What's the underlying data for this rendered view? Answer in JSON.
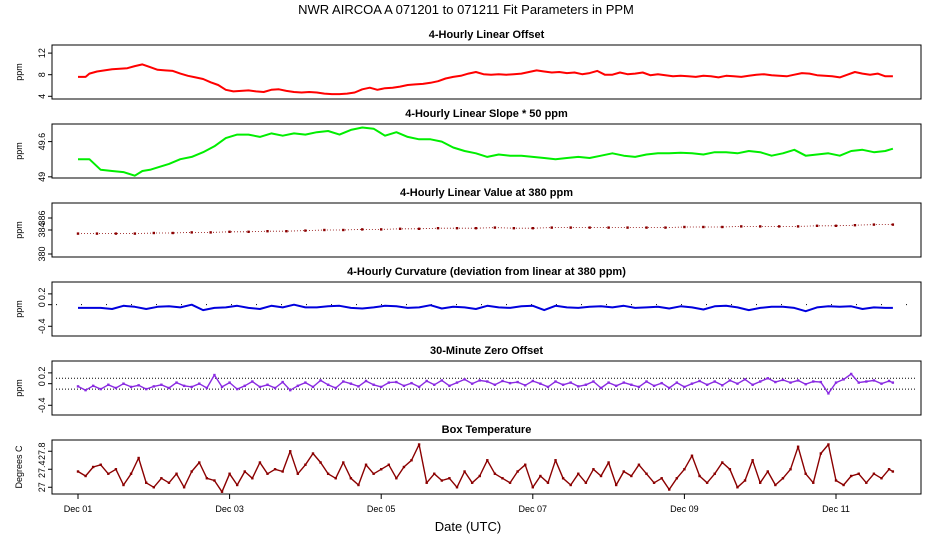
{
  "figure": {
    "title": "NWR   AIRCOA A   071201 to 071211   Fit Parameters in PPM",
    "xlabel": "Date (UTC)",
    "x_ticks": [
      "Dec 01",
      "Dec 03",
      "Dec 05",
      "Dec 07",
      "Dec 09",
      "Dec 11"
    ]
  },
  "chart_data": [
    {
      "type": "line",
      "title": "4-Hourly Linear Offset",
      "ylabel": "ppm",
      "ylim": [
        3.5,
        13.5
      ],
      "yticks": [
        4,
        8,
        12
      ],
      "color": "#ff0000",
      "marker": "line",
      "x": [
        0.0,
        0.1,
        0.15,
        0.25,
        0.35,
        0.45,
        0.55,
        0.65,
        0.75,
        0.85,
        0.95,
        1.05,
        1.15,
        1.25,
        1.35,
        1.45,
        1.55,
        1.65,
        1.75,
        1.85,
        1.95,
        2.05,
        2.15,
        2.25,
        2.35,
        2.45,
        2.55,
        2.65,
        2.75,
        2.85,
        2.95,
        3.05,
        3.15,
        3.25,
        3.35,
        3.45,
        3.55,
        3.65,
        3.75,
        3.85,
        3.95,
        4.05,
        4.15,
        4.25,
        4.35,
        4.45,
        4.55,
        4.65,
        4.75,
        4.85,
        4.95,
        5.05,
        5.15,
        5.25,
        5.35,
        5.45,
        5.55,
        5.65,
        5.75,
        5.85,
        5.95,
        6.05,
        6.15,
        6.25,
        6.35,
        6.45,
        6.55,
        6.65,
        6.75,
        6.85,
        6.95,
        7.05,
        7.15,
        7.25,
        7.35,
        7.45,
        7.55,
        7.65,
        7.75,
        7.85,
        7.95,
        8.05,
        8.15,
        8.25,
        8.35,
        8.45,
        8.55,
        8.65,
        8.75,
        8.85,
        8.95,
        9.05,
        9.15,
        9.25,
        9.35,
        9.45,
        9.55,
        9.65,
        9.75,
        9.85,
        9.95,
        10.05,
        10.15,
        10.25,
        10.35,
        10.45,
        10.55,
        10.65,
        10.75
      ],
      "y": [
        7.6,
        7.6,
        8.2,
        8.6,
        8.8,
        9.0,
        9.1,
        9.2,
        9.6,
        9.9,
        9.4,
        8.9,
        8.8,
        8.7,
        8.2,
        7.8,
        7.5,
        7.2,
        6.6,
        6.1,
        5.2,
        4.9,
        5.0,
        5.1,
        4.9,
        4.8,
        5.2,
        5.3,
        5.0,
        4.8,
        4.7,
        4.8,
        4.7,
        4.5,
        4.4,
        4.4,
        4.5,
        4.7,
        5.3,
        5.6,
        5.2,
        5.5,
        5.6,
        5.8,
        6.1,
        6.2,
        6.3,
        6.5,
        6.8,
        7.3,
        7.6,
        7.8,
        8.2,
        8.5,
        8.1,
        8.0,
        8.1,
        8.0,
        8.1,
        8.2,
        8.5,
        8.8,
        8.6,
        8.4,
        8.5,
        8.3,
        8.4,
        8.1,
        8.3,
        8.7,
        8.0,
        8.0,
        8.4,
        8.1,
        8.2,
        8.4,
        7.9,
        8.1,
        7.9,
        7.7,
        7.8,
        7.7,
        7.6,
        7.8,
        7.7,
        7.5,
        7.8,
        7.7,
        7.6,
        7.8,
        8.0,
        8.1,
        7.9,
        7.8,
        7.7,
        8.0,
        8.3,
        8.2,
        7.9,
        7.8,
        7.7,
        7.5,
        8.0,
        8.5,
        8.2,
        8.0,
        8.2,
        7.7,
        7.7
      ]
    },
    {
      "type": "line",
      "title": "4-Hourly Linear Slope * 50 ppm",
      "ylabel": "ppm",
      "ylim": [
        48.98,
        49.9
      ],
      "yticks": [
        49.0,
        49.6
      ],
      "color": "#00ee00",
      "marker": "line",
      "x": [
        0.0,
        0.15,
        0.3,
        0.45,
        0.6,
        0.75,
        0.85,
        0.95,
        1.05,
        1.2,
        1.35,
        1.5,
        1.65,
        1.8,
        1.95,
        2.1,
        2.25,
        2.4,
        2.55,
        2.7,
        2.85,
        3.0,
        3.15,
        3.3,
        3.45,
        3.6,
        3.75,
        3.9,
        4.05,
        4.2,
        4.35,
        4.5,
        4.65,
        4.8,
        4.95,
        5.1,
        5.25,
        5.4,
        5.55,
        5.7,
        5.85,
        6.0,
        6.15,
        6.3,
        6.45,
        6.6,
        6.75,
        6.9,
        7.05,
        7.2,
        7.35,
        7.5,
        7.65,
        7.8,
        7.95,
        8.1,
        8.25,
        8.4,
        8.55,
        8.7,
        8.85,
        9.0,
        9.15,
        9.3,
        9.45,
        9.6,
        9.75,
        9.9,
        10.05,
        10.2,
        10.35,
        10.5,
        10.65,
        10.75
      ],
      "y": [
        49.3,
        49.3,
        49.12,
        49.1,
        49.08,
        49.02,
        49.1,
        49.12,
        49.16,
        49.22,
        49.3,
        49.34,
        49.42,
        49.52,
        49.66,
        49.72,
        49.72,
        49.68,
        49.74,
        49.7,
        49.74,
        49.72,
        49.76,
        49.78,
        49.72,
        49.8,
        49.84,
        49.82,
        49.7,
        49.76,
        49.68,
        49.64,
        49.64,
        49.6,
        49.5,
        49.44,
        49.4,
        49.34,
        49.38,
        49.36,
        49.36,
        49.34,
        49.32,
        49.3,
        49.32,
        49.34,
        49.32,
        49.36,
        49.4,
        49.36,
        49.34,
        49.38,
        49.4,
        49.4,
        49.41,
        49.4,
        49.38,
        49.42,
        49.42,
        49.4,
        49.44,
        49.42,
        49.36,
        49.4,
        49.46,
        49.36,
        49.38,
        49.4,
        49.36,
        49.44,
        49.46,
        49.42,
        49.44,
        49.48
      ]
    },
    {
      "type": "scatter",
      "title": "4-Hourly Linear Value at 380 ppm",
      "ylabel": "ppm",
      "ylim": [
        379.5,
        388.5
      ],
      "yticks": [
        380,
        384,
        386
      ],
      "color": "#8b0000",
      "marker": "dots",
      "x": [
        0.0,
        0.25,
        0.5,
        0.75,
        1.0,
        1.25,
        1.5,
        1.75,
        2.0,
        2.25,
        2.5,
        2.75,
        3.0,
        3.25,
        3.5,
        3.75,
        4.0,
        4.25,
        4.5,
        4.75,
        5.0,
        5.25,
        5.5,
        5.75,
        6.0,
        6.25,
        6.5,
        6.75,
        7.0,
        7.25,
        7.5,
        7.75,
        8.0,
        8.25,
        8.5,
        8.75,
        9.0,
        9.25,
        9.5,
        9.75,
        10.0,
        10.25,
        10.5,
        10.75
      ],
      "y": [
        383.4,
        383.4,
        383.4,
        383.4,
        383.5,
        383.5,
        383.6,
        383.6,
        383.7,
        383.7,
        383.8,
        383.8,
        383.9,
        384.0,
        384.0,
        384.1,
        384.1,
        384.2,
        384.2,
        384.3,
        384.3,
        384.3,
        384.4,
        384.3,
        384.3,
        384.4,
        384.4,
        384.4,
        384.4,
        384.4,
        384.4,
        384.4,
        384.5,
        384.5,
        384.5,
        384.6,
        384.6,
        384.6,
        384.6,
        384.7,
        384.7,
        384.8,
        384.9,
        384.9
      ]
    },
    {
      "type": "line",
      "title": "4-Hourly Curvature (deviation from linear at 380 ppm)",
      "ylabel": "ppm",
      "ylim": [
        -0.58,
        0.42
      ],
      "yticks": [
        -0.4,
        0.0,
        0.2
      ],
      "color": "#0000dd",
      "marker": "line",
      "reference_lines": [
        0.0
      ],
      "x": [
        0.0,
        0.15,
        0.3,
        0.45,
        0.6,
        0.75,
        0.9,
        1.05,
        1.2,
        1.35,
        1.5,
        1.65,
        1.8,
        1.95,
        2.1,
        2.25,
        2.4,
        2.55,
        2.7,
        2.85,
        3.0,
        3.15,
        3.3,
        3.45,
        3.6,
        3.75,
        3.9,
        4.05,
        4.2,
        4.35,
        4.5,
        4.65,
        4.8,
        4.95,
        5.1,
        5.25,
        5.4,
        5.55,
        5.7,
        5.85,
        6.0,
        6.15,
        6.3,
        6.45,
        6.6,
        6.75,
        6.9,
        7.05,
        7.2,
        7.35,
        7.5,
        7.65,
        7.8,
        7.95,
        8.1,
        8.25,
        8.4,
        8.55,
        8.7,
        8.85,
        9.0,
        9.15,
        9.3,
        9.45,
        9.6,
        9.75,
        9.9,
        10.05,
        10.2,
        10.35,
        10.5,
        10.65,
        10.75
      ],
      "y": [
        -0.06,
        -0.06,
        -0.06,
        -0.08,
        -0.02,
        -0.04,
        -0.08,
        -0.04,
        -0.03,
        -0.05,
        0.0,
        -0.1,
        -0.06,
        -0.05,
        -0.02,
        -0.06,
        -0.08,
        -0.02,
        -0.05,
        0.0,
        -0.05,
        -0.05,
        -0.03,
        -0.02,
        -0.06,
        -0.07,
        -0.05,
        -0.02,
        -0.03,
        -0.06,
        -0.05,
        -0.01,
        -0.07,
        -0.04,
        -0.05,
        -0.08,
        -0.02,
        -0.05,
        -0.06,
        -0.03,
        -0.02,
        -0.1,
        -0.02,
        -0.05,
        -0.06,
        -0.04,
        -0.03,
        -0.05,
        -0.02,
        -0.06,
        -0.05,
        -0.04,
        -0.07,
        -0.03,
        -0.05,
        -0.09,
        -0.03,
        -0.02,
        -0.05,
        -0.1,
        -0.06,
        -0.04,
        -0.04,
        -0.06,
        -0.12,
        -0.05,
        -0.03,
        -0.04,
        -0.03,
        -0.08,
        -0.05,
        -0.06,
        -0.06
      ]
    },
    {
      "type": "line",
      "title": "30-Minute Zero Offset",
      "ylabel": "ppm",
      "ylim": [
        -0.58,
        0.42
      ],
      "yticks": [
        -0.4,
        0.0,
        0.2
      ],
      "color": "#8a2be2",
      "marker": "line+points",
      "reference_lines": [
        0.1,
        -0.1
      ],
      "x": [
        0.0,
        0.1,
        0.2,
        0.3,
        0.4,
        0.5,
        0.6,
        0.7,
        0.8,
        0.9,
        1.0,
        1.1,
        1.2,
        1.3,
        1.4,
        1.5,
        1.6,
        1.7,
        1.8,
        1.9,
        2.0,
        2.1,
        2.2,
        2.3,
        2.4,
        2.5,
        2.6,
        2.7,
        2.8,
        2.9,
        3.0,
        3.1,
        3.2,
        3.3,
        3.4,
        3.5,
        3.6,
        3.7,
        3.8,
        3.9,
        4.0,
        4.1,
        4.2,
        4.3,
        4.4,
        4.5,
        4.6,
        4.7,
        4.8,
        4.9,
        5.0,
        5.1,
        5.2,
        5.3,
        5.4,
        5.5,
        5.6,
        5.7,
        5.8,
        5.9,
        6.0,
        6.1,
        6.2,
        6.3,
        6.4,
        6.5,
        6.6,
        6.7,
        6.8,
        6.9,
        7.0,
        7.1,
        7.2,
        7.3,
        7.4,
        7.5,
        7.6,
        7.7,
        7.8,
        7.9,
        8.0,
        8.1,
        8.2,
        8.3,
        8.4,
        8.5,
        8.6,
        8.7,
        8.8,
        8.9,
        9.0,
        9.1,
        9.2,
        9.3,
        9.4,
        9.5,
        9.6,
        9.7,
        9.8,
        9.9,
        10.0,
        10.1,
        10.2,
        10.3,
        10.4,
        10.5,
        10.6,
        10.7,
        10.75
      ],
      "y": [
        -0.05,
        -0.12,
        -0.04,
        -0.1,
        -0.02,
        -0.08,
        0.0,
        -0.06,
        -0.03,
        -0.1,
        -0.05,
        -0.02,
        -0.08,
        0.02,
        -0.04,
        -0.06,
        0.0,
        -0.08,
        0.16,
        -0.06,
        0.02,
        -0.1,
        -0.04,
        0.04,
        -0.06,
        -0.02,
        -0.08,
        0.03,
        -0.12,
        -0.04,
        0.02,
        -0.06,
        0.06,
        -0.02,
        -0.08,
        0.04,
        0.0,
        -0.05,
        0.05,
        -0.02,
        -0.06,
        0.02,
        0.03,
        -0.04,
        0.01,
        -0.06,
        0.05,
        -0.02,
        0.06,
        -0.04,
        0.02,
        0.08,
        0.0,
        0.06,
        0.04,
        -0.02,
        0.05,
        0.01,
        0.03,
        -0.03,
        0.05,
        0.0,
        -0.06,
        0.04,
        -0.02,
        0.02,
        -0.05,
        -0.02,
        0.04,
        -0.08,
        0.02,
        -0.04,
        0.02,
        -0.02,
        -0.06,
        0.04,
        -0.04,
        0.01,
        -0.08,
        0.02,
        -0.06,
        0.0,
        0.05,
        -0.02,
        0.04,
        -0.03,
        0.06,
        0.0,
        0.08,
        -0.02,
        0.04,
        0.1,
        0.03,
        0.07,
        0.02,
        0.06,
        -0.01,
        0.04,
        0.03,
        -0.18,
        0.02,
        0.08,
        0.18,
        0.02,
        0.04,
        0.06,
        0.0,
        0.05,
        0.02
      ]
    },
    {
      "type": "line",
      "title": "Box Temperature",
      "ylabel": "Degrees C",
      "ylim": [
        26.85,
        28.05
      ],
      "yticks": [
        27.0,
        27.4,
        27.8
      ],
      "color": "#8b0000",
      "marker": "line+points",
      "x": [
        0.0,
        0.1,
        0.2,
        0.3,
        0.4,
        0.5,
        0.6,
        0.7,
        0.8,
        0.9,
        1.0,
        1.1,
        1.2,
        1.3,
        1.4,
        1.5,
        1.6,
        1.7,
        1.8,
        1.9,
        2.0,
        2.1,
        2.2,
        2.3,
        2.4,
        2.5,
        2.6,
        2.7,
        2.8,
        2.9,
        3.0,
        3.1,
        3.2,
        3.3,
        3.4,
        3.5,
        3.6,
        3.7,
        3.8,
        3.9,
        4.0,
        4.1,
        4.2,
        4.3,
        4.4,
        4.5,
        4.6,
        4.7,
        4.8,
        4.9,
        5.0,
        5.1,
        5.2,
        5.3,
        5.4,
        5.5,
        5.6,
        5.7,
        5.8,
        5.9,
        6.0,
        6.1,
        6.2,
        6.3,
        6.4,
        6.5,
        6.6,
        6.7,
        6.8,
        6.9,
        7.0,
        7.1,
        7.2,
        7.3,
        7.4,
        7.5,
        7.6,
        7.7,
        7.8,
        7.9,
        8.0,
        8.1,
        8.2,
        8.3,
        8.4,
        8.5,
        8.6,
        8.7,
        8.8,
        8.9,
        9.0,
        9.1,
        9.2,
        9.3,
        9.4,
        9.5,
        9.6,
        9.7,
        9.8,
        9.9,
        10.0,
        10.1,
        10.2,
        10.3,
        10.4,
        10.5,
        10.6,
        10.7,
        10.75
      ],
      "y": [
        27.35,
        27.25,
        27.45,
        27.5,
        27.3,
        27.4,
        27.05,
        27.3,
        27.65,
        27.1,
        27.0,
        27.2,
        27.1,
        27.3,
        27.0,
        27.35,
        27.55,
        27.2,
        27.15,
        26.9,
        27.3,
        27.05,
        27.35,
        27.2,
        27.55,
        27.3,
        27.4,
        27.35,
        27.8,
        27.3,
        27.5,
        27.75,
        27.55,
        27.3,
        27.2,
        27.55,
        27.2,
        27.05,
        27.5,
        27.3,
        27.4,
        27.5,
        27.2,
        27.45,
        27.6,
        27.95,
        27.1,
        27.3,
        27.15,
        27.2,
        27.0,
        27.35,
        27.1,
        27.25,
        27.6,
        27.3,
        27.2,
        27.1,
        27.35,
        27.5,
        27.0,
        27.25,
        27.1,
        27.6,
        27.2,
        27.05,
        27.3,
        27.1,
        27.4,
        27.25,
        27.55,
        27.05,
        27.35,
        27.25,
        27.5,
        27.3,
        27.1,
        27.2,
        26.95,
        27.2,
        27.4,
        27.7,
        27.25,
        27.1,
        27.3,
        27.55,
        27.4,
        27.0,
        27.15,
        27.6,
        27.1,
        27.35,
        27.05,
        27.2,
        27.4,
        27.9,
        27.3,
        27.1,
        27.75,
        27.95,
        27.15,
        27.05,
        27.25,
        27.3,
        27.1,
        27.3,
        27.2,
        27.4,
        27.35
      ]
    }
  ]
}
